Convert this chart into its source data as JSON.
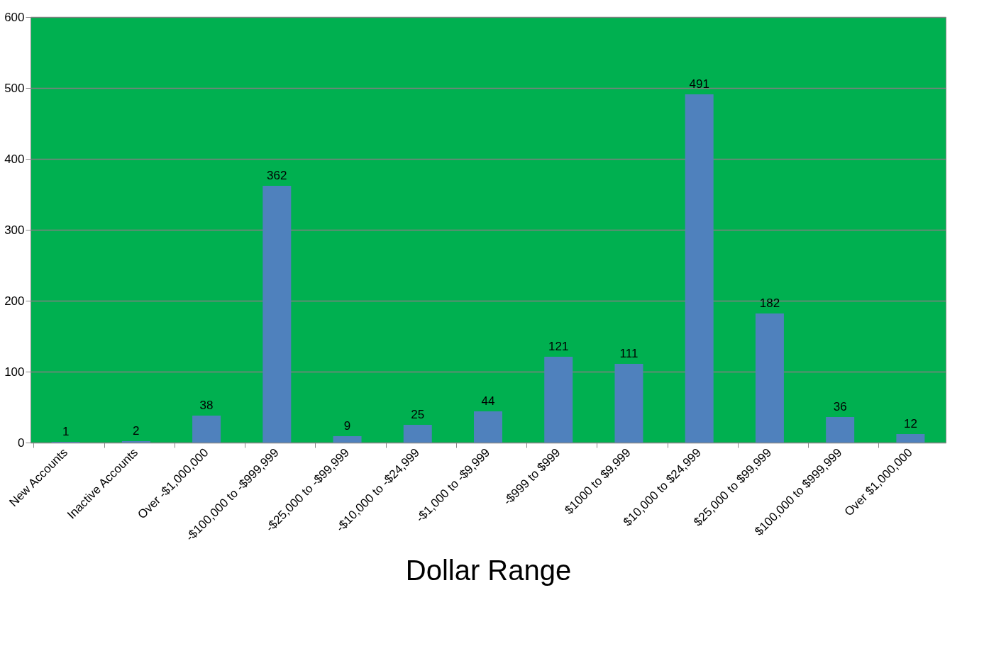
{
  "chart_data": {
    "type": "bar",
    "xlabel": "Dollar Range",
    "categories": [
      "New Accounts",
      "Inactive Accounts",
      "Over -$1,000,000",
      "-$100,000 to -$999,999",
      "-$25,000 to -$99,999",
      "-$10,000 to -$24,999",
      "-$1,000 to -$9,999",
      "-$999 to $999",
      "$1000 to $9,999",
      "$10,000 to $24,999",
      "$25,000 to $99,999",
      "$100,000 to $999,999",
      "Over $1,000,000"
    ],
    "values": [
      1,
      2,
      38,
      362,
      9,
      25,
      44,
      121,
      111,
      491,
      182,
      36,
      12
    ],
    "color": "#4f81bd",
    "ylim": [
      0,
      600
    ],
    "yticks": [
      0,
      100,
      200,
      300,
      400,
      500,
      600
    ],
    "grid": "y",
    "data_labels": true
  }
}
